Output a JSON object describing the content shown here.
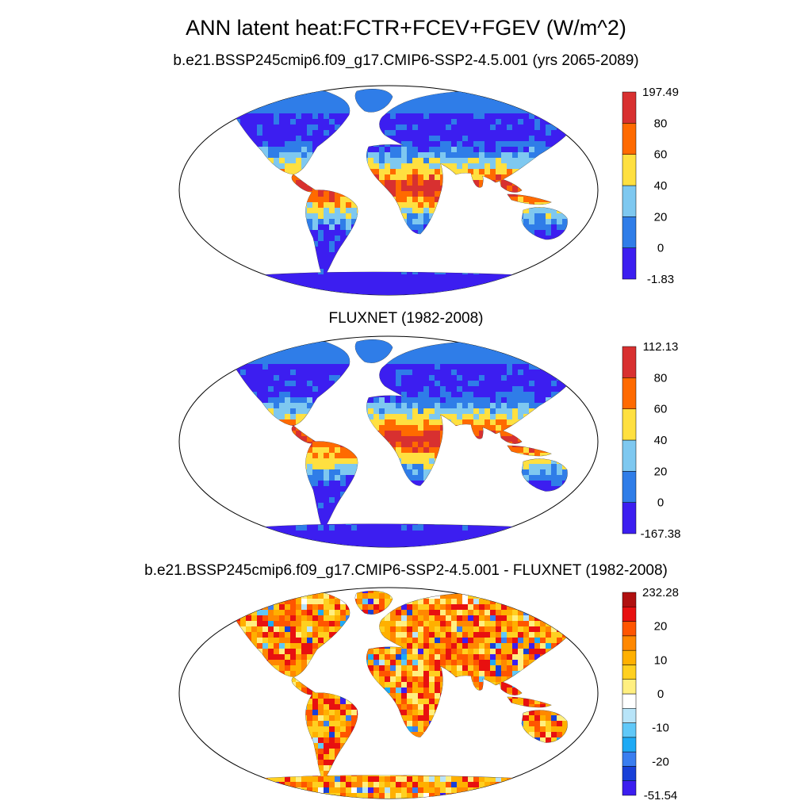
{
  "figure": {
    "title": "ANN latent heat:FCTR+FCEV+FGEV (W/m^2)"
  },
  "panels": [
    {
      "title": "b.e21.BSSP245cmip6.f09_g17.CMIP6-SSP2-4.5.001 (yrs 2065-2089)",
      "colorbar": {
        "labels": [
          "197.49",
          "80",
          "60",
          "40",
          "20",
          "0",
          "-1.83"
        ],
        "colors": [
          "#3c1ef0",
          "#2f7de8",
          "#7ec8f0",
          "#ffe040",
          "#ff6a00",
          "#d83030"
        ]
      },
      "map_fill": "mean"
    },
    {
      "title": "FLUXNET (1982-2008)",
      "colorbar": {
        "labels": [
          "112.13",
          "80",
          "60",
          "40",
          "20",
          "0",
          "-167.38"
        ],
        "colors": [
          "#3c1ef0",
          "#2f7de8",
          "#7ec8f0",
          "#ffe040",
          "#ff6a00",
          "#d83030"
        ]
      },
      "map_fill": "mean"
    },
    {
      "title": "b.e21.BSSP245cmip6.f09_g17.CMIP6-SSP2-4.5.001 - FLUXNET (1982-2008)",
      "colorbar": {
        "labels": [
          "232.28",
          "20",
          "10",
          "0",
          "-10",
          "-20",
          "-51.54"
        ],
        "colors": [
          "#3c1ef0",
          "#1840d8",
          "#3a7ef0",
          "#1eaaf5",
          "#60c8f8",
          "#b8e4f8",
          "#ffffff",
          "#ffef80",
          "#ffd020",
          "#ffb000",
          "#ff8800",
          "#ff5500",
          "#e81010",
          "#b01010"
        ]
      },
      "map_fill": "difference"
    }
  ]
}
